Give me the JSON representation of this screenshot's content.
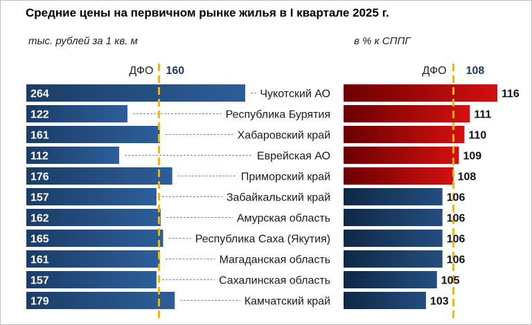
{
  "title": "Средние цены на первичном рынке жилья в I квартале 2025 г.",
  "left_panel": {
    "subtitle": "тыс. рублей за 1 кв. м",
    "ref_label": "ДФО",
    "ref_value": "160"
  },
  "right_panel": {
    "subtitle": "в % к СППГ",
    "ref_label": "ДФО",
    "ref_value": "108"
  },
  "colors": {
    "blue_dark": "#1b3d66",
    "blue_light": "#2d5e9a",
    "red_dark": "#6b0000",
    "red_light": "#d41010",
    "navy_dark": "#0f2844",
    "navy_light": "#234e80",
    "ref_line": "#f5b800",
    "ref_value_text": "#1f3b63"
  },
  "chart_data": [
    {
      "type": "bar",
      "orientation": "horizontal",
      "title": "тыс. рублей за 1 кв. м",
      "categories": [
        "Чукотский АО",
        "Республика Бурятия",
        "Хабаровский край",
        "Еврейская АО",
        "Приморский край",
        "Забайкальский край",
        "Амурская область",
        "Республика Саха (Якутия)",
        "Магаданская область",
        "Сахалинская область",
        "Камчатский край"
      ],
      "values": [
        264,
        122,
        161,
        112,
        176,
        157,
        162,
        165,
        161,
        157,
        179
      ],
      "reference_line": {
        "label": "ДФО",
        "value": 160
      },
      "xlim": [
        0,
        264
      ]
    },
    {
      "type": "bar",
      "orientation": "horizontal",
      "title": "в % к СППГ",
      "categories": [
        "Чукотский АО",
        "Республика Бурятия",
        "Хабаровский край",
        "Еврейская АО",
        "Приморский край",
        "Забайкальский край",
        "Амурская область",
        "Республика Саха (Якутия)",
        "Магаданская область",
        "Сахалинская область",
        "Камчатский край"
      ],
      "values": [
        116,
        111,
        110,
        109,
        108,
        106,
        106,
        106,
        106,
        105,
        103
      ],
      "reference_line": {
        "label": "ДФО",
        "value": 108
      },
      "highlight_threshold": 108,
      "xlim": [
        88,
        116
      ]
    }
  ]
}
